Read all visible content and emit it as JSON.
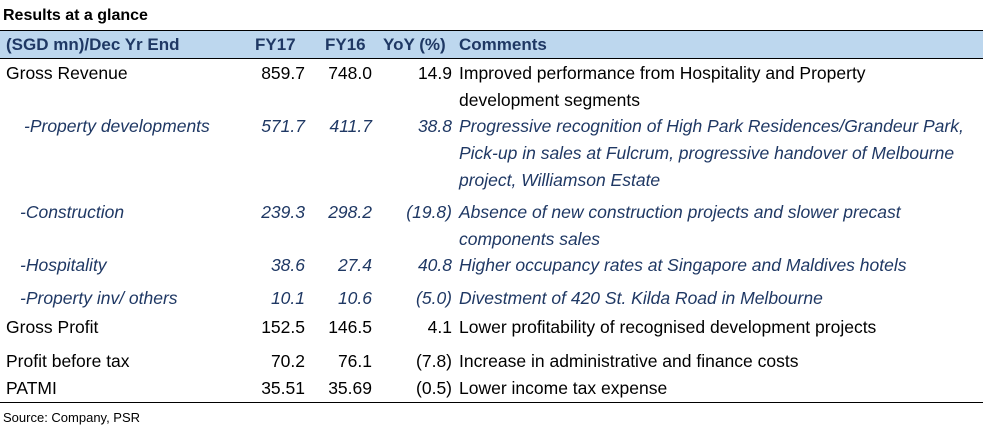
{
  "title": "Results at a glance",
  "header": {
    "label": "(SGD mn)/Dec Yr End",
    "fy17": "FY17",
    "fy16": "FY16",
    "yoy": "YoY (%)",
    "comments": "Comments"
  },
  "rows": [
    {
      "label": "Gross Revenue",
      "fy17": "859.7",
      "fy16": "748.0",
      "yoy": "14.9",
      "comment": "Improved performance from Hospitality and Property development segments"
    },
    {
      "label": "-Property developments",
      "fy17": "571.7",
      "fy16": "411.7",
      "yoy": "38.8",
      "comment": "Progressive recognition of High Park Residences/Grandeur Park, Pick-up in sales at Fulcrum, progressive handover of Melbourne project, Williamson Estate"
    },
    {
      "label": "-Construction",
      "fy17": "239.3",
      "fy16": "298.2",
      "yoy": "(19.8)",
      "comment": "Absence of new construction projects and slower precast components sales"
    },
    {
      "label": "-Hospitality",
      "fy17": "38.6",
      "fy16": "27.4",
      "yoy": "40.8",
      "comment": "Higher occupancy rates at Singapore and Maldives hotels"
    },
    {
      "label": "-Property inv/ others",
      "fy17": "10.1",
      "fy16": "10.6",
      "yoy": "(5.0)",
      "comment": "Divestment of 420 St. Kilda Road in Melbourne"
    },
    {
      "label": "Gross Profit",
      "fy17": "152.5",
      "fy16": "146.5",
      "yoy": "4.1",
      "comment": "Lower profitability of recognised development projects"
    },
    {
      "label": "Profit before tax",
      "fy17": "70.2",
      "fy16": "76.1",
      "yoy": "(7.8)",
      "comment": "Increase in administrative and finance costs"
    },
    {
      "label": "PATMI",
      "fy17": "35.51",
      "fy16": "35.69",
      "yoy": "(0.5)",
      "comment": "Lower income tax expense"
    }
  ],
  "source": "Source: Company, PSR"
}
